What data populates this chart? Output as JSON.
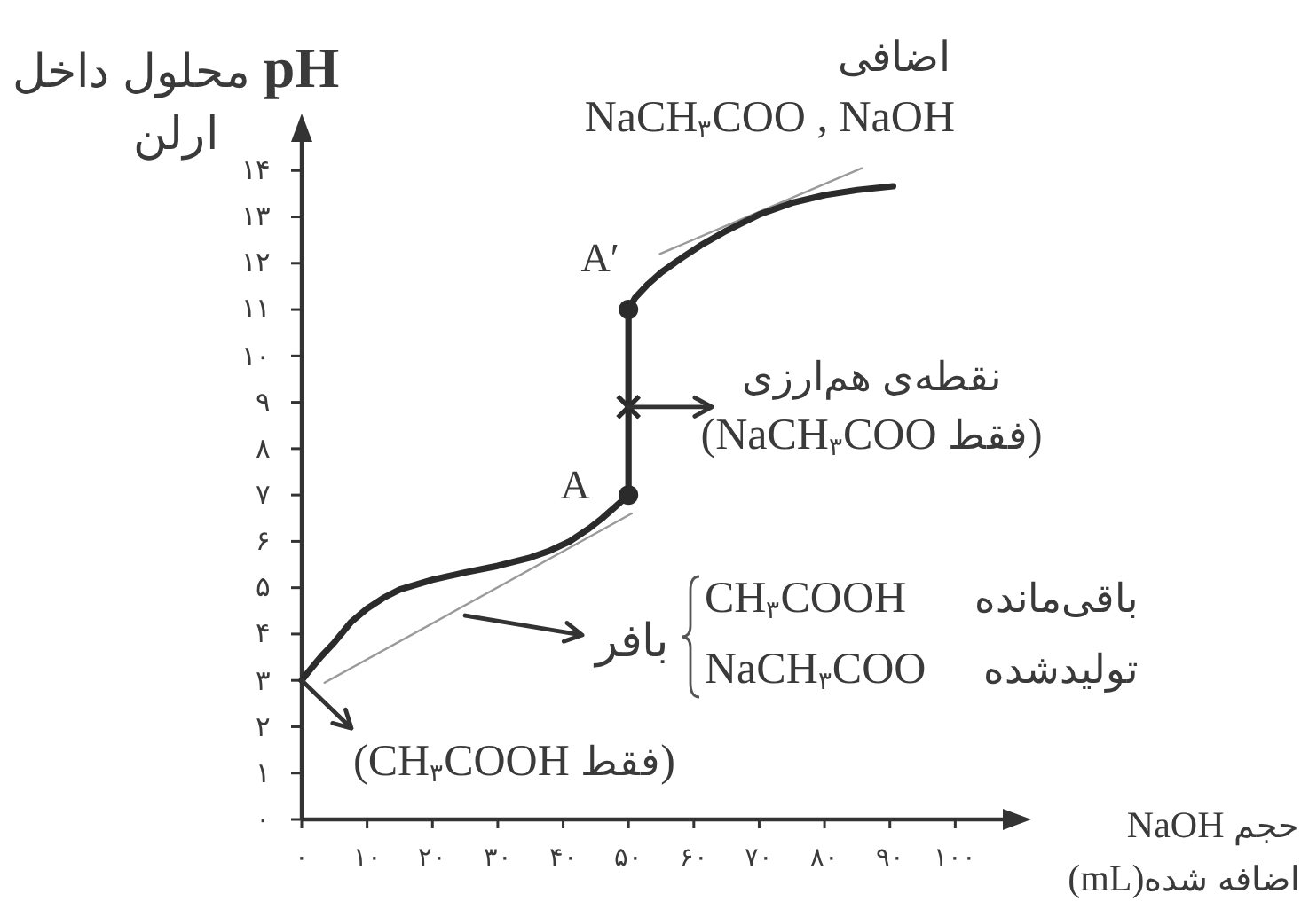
{
  "chart_data": {
    "type": "line",
    "ylabel": "pH محلول داخل ارلن",
    "xlabel": "حجم NaOH اضافه شده(mL)",
    "xlim": [
      0,
      110
    ],
    "ylim": [
      0,
      15
    ],
    "xticks": [
      {
        "value": 0,
        "label": "۰"
      },
      {
        "value": 10,
        "label": "۱۰"
      },
      {
        "value": 20,
        "label": "۲۰"
      },
      {
        "value": 30,
        "label": "۳۰"
      },
      {
        "value": 40,
        "label": "۴۰"
      },
      {
        "value": 50,
        "label": "۵۰"
      },
      {
        "value": 60,
        "label": "۶۰"
      },
      {
        "value": 70,
        "label": "۷۰"
      },
      {
        "value": 80,
        "label": "۸۰"
      },
      {
        "value": 90,
        "label": "۹۰"
      },
      {
        "value": 100,
        "label": "۱۰۰"
      }
    ],
    "yticks": [
      {
        "value": 0,
        "label": "۰"
      },
      {
        "value": 1,
        "label": "۱"
      },
      {
        "value": 2,
        "label": "۲"
      },
      {
        "value": 3,
        "label": "۳"
      },
      {
        "value": 4,
        "label": "۴"
      },
      {
        "value": 5,
        "label": "۵"
      },
      {
        "value": 6,
        "label": "۶"
      },
      {
        "value": 7,
        "label": "۷"
      },
      {
        "value": 8,
        "label": "۸"
      },
      {
        "value": 9,
        "label": "۹"
      },
      {
        "value": 10,
        "label": "۱۰"
      },
      {
        "value": 11,
        "label": "۱۱"
      },
      {
        "value": 12,
        "label": "۱۲"
      },
      {
        "value": 13,
        "label": "۱۳"
      },
      {
        "value": 14,
        "label": "۱۴"
      }
    ],
    "series": [
      {
        "color": "#9a9a9a",
        "x": [
          3.5,
          50.5
        ],
        "values": [
          2.95,
          6.6
        ]
      },
      {
        "color": "#9a9a9a",
        "x": [
          54.8,
          85.7
        ],
        "values": [
          12.2,
          14.05
        ]
      },
      {
        "color": "#2b2b2b",
        "x": [
          0,
          1,
          2,
          3,
          5,
          7.5,
          10,
          12.5,
          15,
          20,
          25,
          30,
          35,
          38,
          41,
          44,
          46,
          48,
          50,
          50,
          51,
          53,
          55,
          58,
          61,
          65,
          70,
          75,
          80,
          85,
          90.5
        ],
        "values": [
          3,
          3.18,
          3.35,
          3.52,
          3.82,
          4.25,
          4.55,
          4.78,
          4.96,
          5.17,
          5.33,
          5.47,
          5.65,
          5.8,
          6,
          6.28,
          6.5,
          6.75,
          7,
          11,
          11.25,
          11.55,
          11.8,
          12.1,
          12.38,
          12.7,
          13.05,
          13.3,
          13.47,
          13.58,
          13.66
        ]
      },
      {
        "type": "scatter",
        "marker": "circle",
        "color": "#2b2b2b",
        "x": [
          50,
          50
        ],
        "values": [
          7,
          11
        ]
      },
      {
        "type": "scatter",
        "marker": "cross",
        "color": "#2b2b2b",
        "x": [
          50
        ],
        "values": [
          8.9
        ]
      }
    ],
    "annotations": [
      {
        "text": "A",
        "x": 50,
        "y": 7
      },
      {
        "text": "A′",
        "x": 50,
        "y": 11
      },
      "اضافی",
      "NaCH$_{۳}$COO , NaOH",
      {
        "text": "نقطه‌ی هم‌ارزی\n(NaCH$_{۳}$COO فقط)",
        "x": 50,
        "y": 8.9
      },
      {
        "text": "بافر",
        "x": 25,
        "y": 4.4
      },
      "CH$_{۳}$COOH باقی‌مانده",
      "NaCH$_{۳}$COO تولیدشده",
      {
        "text": "(CH$_{۳}$COOH فقط)",
        "x": 0,
        "y": 3
      }
    ]
  }
}
